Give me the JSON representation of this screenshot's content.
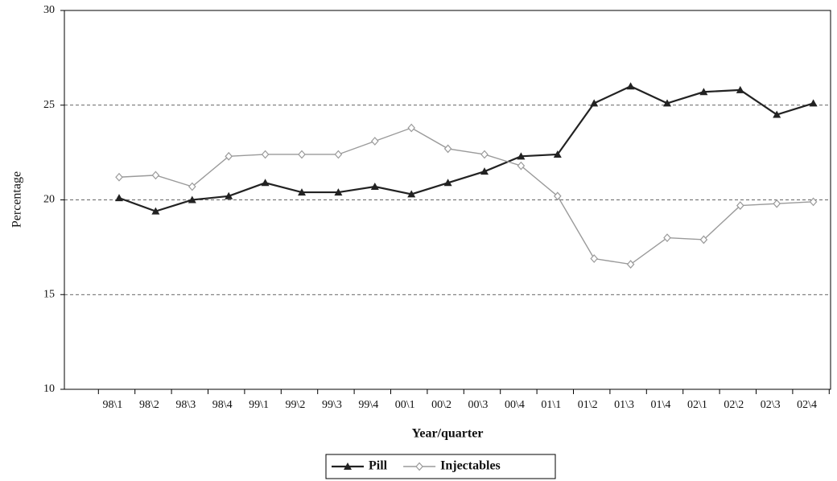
{
  "chart_data": {
    "type": "line",
    "x_label": "Year/quarter",
    "y_label": "Percentage",
    "categories": [
      "98\\1",
      "98\\2",
      "98\\3",
      "98\\4",
      "99\\1",
      "99\\2",
      "99\\3",
      "99\\4",
      "00\\1",
      "00\\2",
      "00\\3",
      "00\\4",
      "01\\1",
      "01\\2",
      "01\\3",
      "01\\4",
      "02\\1",
      "02\\2",
      "02\\3",
      "02\\4"
    ],
    "series": [
      {
        "name": "Pill",
        "color": "#222222",
        "marker": "triangle",
        "values": [
          20.1,
          19.4,
          20.0,
          20.2,
          20.9,
          20.4,
          20.4,
          20.7,
          20.3,
          20.9,
          21.5,
          22.3,
          22.4,
          25.1,
          26.0,
          25.1,
          25.7,
          25.8,
          24.5,
          25.1
        ]
      },
      {
        "name": "Injectables",
        "color": "#9a9a9a",
        "marker": "diamond",
        "values": [
          21.2,
          21.3,
          20.7,
          22.3,
          22.4,
          22.4,
          22.4,
          23.1,
          23.8,
          22.7,
          22.4,
          21.8,
          20.2,
          16.9,
          16.6,
          18.0,
          17.9,
          19.7,
          19.8,
          19.9
        ]
      }
    ],
    "ylim": [
      10,
      30
    ],
    "yticks": [
      10,
      15,
      20,
      25,
      30
    ],
    "grid": true,
    "legend": "bottom"
  }
}
